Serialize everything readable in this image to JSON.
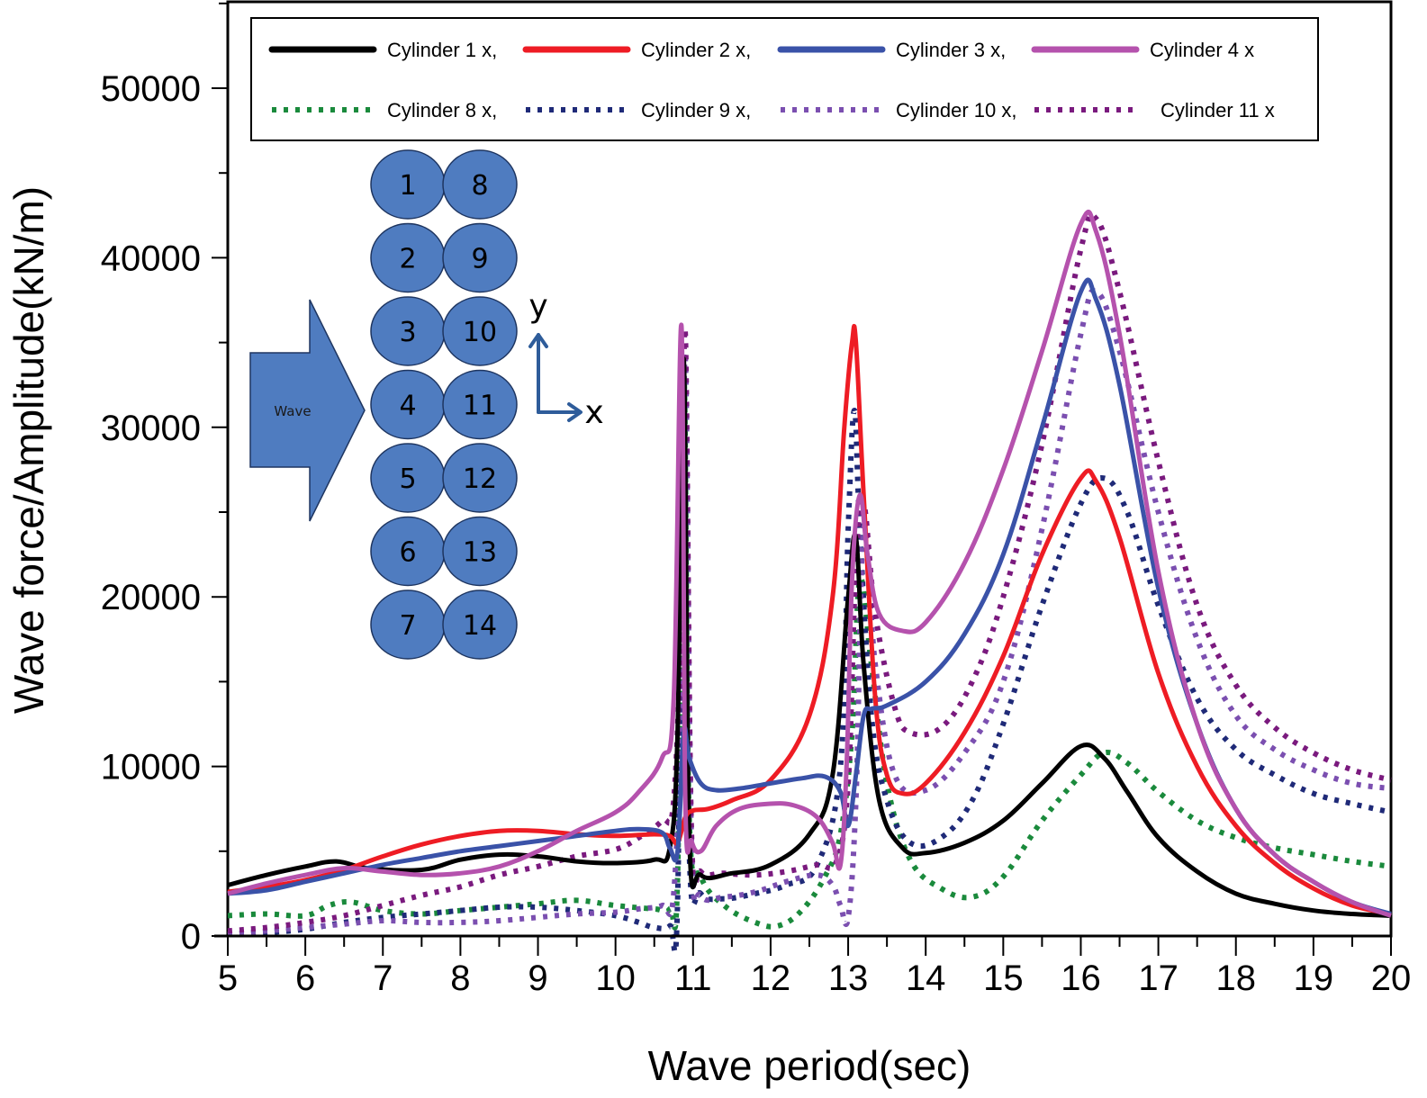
{
  "chart_data": {
    "type": "line",
    "title": "",
    "xlabel": "Wave period(sec)",
    "ylabel": "Wave force/Amplitude(kN/m)",
    "xlim": [
      5,
      20
    ],
    "ylim": [
      0,
      55000
    ],
    "xticks": [
      5,
      6,
      7,
      8,
      9,
      10,
      11,
      12,
      13,
      14,
      15,
      16,
      17,
      18,
      19,
      20
    ],
    "yticks": [
      0,
      10000,
      20000,
      30000,
      40000,
      50000
    ],
    "ytick_labels": [
      "0",
      "10000",
      "20000",
      "30000",
      "40000",
      "50000"
    ],
    "grid": false,
    "legend_position": "top",
    "series": [
      {
        "name": "Cylinder 1 x,",
        "color": "#000000",
        "style": "solid",
        "x": [
          5,
          5.5,
          6,
          6.4,
          6.8,
          7.5,
          8,
          8.5,
          9,
          9.5,
          10,
          10.5,
          10.7,
          10.8,
          10.88,
          10.95,
          11.1,
          11.5,
          12,
          12.5,
          12.8,
          13.0,
          13.1,
          13.2,
          13.4,
          13.7,
          14,
          14.5,
          15,
          15.5,
          16,
          16.3,
          16.6,
          17,
          17.5,
          18,
          18.5,
          19,
          19.5,
          20
        ],
        "y": [
          3000,
          3600,
          4100,
          4400,
          4000,
          3900,
          4500,
          4800,
          4700,
          4400,
          4300,
          4500,
          5200,
          12000,
          34000,
          6000,
          3600,
          3700,
          4200,
          6000,
          9500,
          20000,
          23500,
          16000,
          8000,
          5200,
          4900,
          5500,
          6800,
          9000,
          11200,
          10500,
          8500,
          5800,
          3800,
          2500,
          1900,
          1500,
          1300,
          1200
        ]
      },
      {
        "name": "Cylinder 2 x,",
        "color": "#ee1c24",
        "style": "solid",
        "x": [
          5,
          5.5,
          6,
          6.5,
          7,
          7.5,
          8,
          8.5,
          9,
          9.5,
          10,
          10.5,
          10.7,
          10.8,
          10.9,
          11.0,
          11.2,
          11.5,
          12,
          12.5,
          12.8,
          12.95,
          13.05,
          13.1,
          13.2,
          13.35,
          13.5,
          13.7,
          14,
          14.5,
          15,
          15.5,
          16,
          16.2,
          16.5,
          17,
          17.5,
          18,
          18.5,
          19,
          19.5,
          20
        ],
        "y": [
          2600,
          2900,
          3300,
          3900,
          4700,
          5400,
          5900,
          6200,
          6200,
          6000,
          5900,
          6000,
          5900,
          5500,
          7000,
          7400,
          7500,
          8000,
          9200,
          13000,
          20000,
          30000,
          35000,
          35000,
          26000,
          14000,
          9500,
          8400,
          9000,
          12000,
          16500,
          22500,
          27000,
          26800,
          23500,
          15500,
          10000,
          6500,
          4300,
          2800,
          1800,
          1300
        ]
      },
      {
        "name": "Cylinder 3 x,",
        "color": "#3a52a8",
        "style": "solid",
        "x": [
          5,
          5.5,
          6,
          6.5,
          7,
          7.5,
          8,
          8.5,
          9,
          9.5,
          10,
          10.3,
          10.6,
          10.7,
          10.8,
          10.88,
          10.95,
          11.1,
          11.3,
          11.6,
          12,
          12.4,
          12.7,
          12.9,
          13.0,
          13.1,
          13.2,
          13.3,
          13.5,
          14,
          14.5,
          15,
          15.5,
          16,
          16.2,
          16.5,
          17,
          17.5,
          18,
          18.5,
          19,
          19.5,
          20
        ],
        "y": [
          2500,
          2700,
          3200,
          3700,
          4200,
          4600,
          5000,
          5300,
          5600,
          5900,
          6200,
          6300,
          6100,
          5200,
          5000,
          12000,
          10500,
          9000,
          8600,
          8700,
          9000,
          9300,
          9400,
          8500,
          6500,
          9500,
          13000,
          13400,
          13600,
          15000,
          17800,
          22500,
          30000,
          38000,
          37500,
          32500,
          20500,
          12500,
          7500,
          4800,
          3200,
          2000,
          1300
        ]
      },
      {
        "name": "Cylinder 4 x",
        "color": "#b552ad",
        "style": "solid",
        "x": [
          5,
          5.5,
          6,
          6.5,
          7,
          7.5,
          8,
          8.5,
          9,
          9.5,
          10,
          10.3,
          10.6,
          10.75,
          10.85,
          10.9,
          10.98,
          11.1,
          11.3,
          11.6,
          12,
          12.3,
          12.6,
          12.8,
          12.9,
          12.98,
          13.05,
          13.15,
          13.25,
          13.4,
          13.7,
          14,
          14.5,
          15,
          15.5,
          16,
          16.2,
          16.5,
          17,
          17.5,
          18,
          18.5,
          19,
          19.5,
          20
        ],
        "y": [
          2500,
          3100,
          3600,
          4000,
          3800,
          3600,
          3700,
          4100,
          5000,
          6200,
          7300,
          8500,
          10500,
          14000,
          36000,
          8000,
          5600,
          5000,
          6500,
          7500,
          7800,
          7700,
          7000,
          5500,
          4200,
          10000,
          21000,
          26000,
          22500,
          19000,
          18000,
          18500,
          22000,
          27500,
          34500,
          42000,
          41500,
          35500,
          21500,
          12500,
          7500,
          4800,
          3200,
          2000,
          1200
        ]
      },
      {
        "name": "Cylinder 8 x,",
        "color": "#1a8a3c",
        "style": "dotted",
        "x": [
          5,
          5.5,
          6,
          6.3,
          6.6,
          7,
          7.5,
          8,
          8.5,
          9,
          9.5,
          10,
          10.5,
          10.7,
          10.8,
          10.88,
          10.95,
          11.1,
          11.4,
          11.8,
          12.1,
          12.4,
          12.7,
          12.9,
          13.05,
          13.15,
          13.3,
          13.5,
          13.8,
          14.2,
          14.6,
          15,
          15.5,
          16,
          16.3,
          16.6,
          17,
          17.5,
          18,
          18.5,
          19,
          19.5,
          20
        ],
        "y": [
          1200,
          1300,
          1200,
          1800,
          2000,
          1500,
          1300,
          1500,
          1700,
          1900,
          2100,
          1800,
          1600,
          1600,
          3500,
          33000,
          7000,
          3500,
          1800,
          800,
          600,
          1500,
          3500,
          6000,
          12000,
          21000,
          16000,
          9000,
          4500,
          2800,
          2300,
          3500,
          6800,
          9500,
          10800,
          10200,
          8500,
          6800,
          5800,
          5200,
          4800,
          4400,
          4100
        ]
      },
      {
        "name": "Cylinder 9 x,",
        "color": "#1f2a78",
        "style": "dotted",
        "x": [
          5,
          5.5,
          6,
          6.5,
          7,
          7.5,
          8,
          8.5,
          9,
          9.5,
          10,
          10.3,
          10.5,
          10.7,
          10.8,
          10.88,
          10.95,
          11.1,
          11.4,
          11.8,
          12.2,
          12.6,
          12.9,
          13.0,
          13.08,
          13.15,
          13.3,
          13.5,
          13.8,
          14.2,
          14.6,
          15,
          15.5,
          16,
          16.3,
          16.6,
          17,
          17.5,
          18,
          18.5,
          19,
          19.5,
          20
        ],
        "y": [
          100,
          200,
          400,
          800,
          1100,
          1300,
          1500,
          1700,
          1700,
          1500,
          1200,
          800,
          500,
          600,
          2000,
          33000,
          5000,
          2500,
          2200,
          2500,
          3000,
          4200,
          10000,
          24000,
          31000,
          24000,
          13000,
          8000,
          5500,
          5800,
          8000,
          12500,
          19500,
          25500,
          27000,
          25000,
          19500,
          14000,
          11000,
          9500,
          8400,
          7800,
          7300
        ]
      },
      {
        "name": "Cylinder 10 x,",
        "color": "#7b4fb0",
        "style": "dotted",
        "x": [
          5,
          5.5,
          6,
          6.5,
          7,
          7.5,
          8,
          8.5,
          9,
          9.5,
          10,
          10.3,
          10.6,
          10.75,
          10.85,
          10.9,
          10.98,
          11.1,
          11.4,
          11.8,
          12.2,
          12.6,
          12.8,
          12.9,
          13.0,
          13.1,
          13.2,
          13.35,
          13.6,
          14,
          14.5,
          15,
          15.5,
          16,
          16.2,
          16.5,
          17,
          17.5,
          18,
          18.5,
          19,
          19.5,
          20
        ],
        "y": [
          100,
          300,
          500,
          700,
          900,
          800,
          800,
          900,
          1100,
          1300,
          1400,
          1600,
          1800,
          2500,
          15000,
          34000,
          5500,
          2400,
          2300,
          2600,
          3200,
          3600,
          3000,
          1800,
          1100,
          8000,
          24000,
          16000,
          9500,
          8600,
          10800,
          15000,
          24000,
          35500,
          38000,
          34500,
          25000,
          17500,
          13000,
          11000,
          9800,
          9000,
          8700
        ]
      },
      {
        "name": "Cylinder 11 x",
        "color": "#7a1a7e",
        "style": "dotted",
        "x": [
          5,
          5.5,
          6,
          6.5,
          7,
          7.5,
          8,
          8.5,
          9,
          9.5,
          10,
          10.3,
          10.6,
          10.75,
          10.85,
          10.9,
          10.98,
          11.1,
          11.4,
          11.8,
          12.2,
          12.6,
          12.85,
          13.0,
          13.1,
          13.2,
          13.35,
          13.6,
          13.8,
          14.2,
          14.6,
          15,
          15.5,
          16,
          16.2,
          16.5,
          17,
          17.5,
          18,
          18.5,
          19,
          19.5,
          20
        ],
        "y": [
          300,
          500,
          800,
          1200,
          1800,
          2400,
          2900,
          3600,
          4100,
          4700,
          5100,
          5800,
          6800,
          8000,
          20000,
          35500,
          6000,
          3800,
          3700,
          3600,
          3800,
          4200,
          4400,
          9000,
          22000,
          25500,
          19000,
          13500,
          12000,
          12300,
          15000,
          20000,
          29000,
          40500,
          42300,
          38000,
          28000,
          19500,
          14800,
          12300,
          10800,
          9800,
          9200
        ]
      }
    ]
  },
  "legend": {
    "rows": [
      [
        "Cylinder 1 x,",
        "Cylinder 2 x,",
        "Cylinder 3 x,",
        "Cylinder 4 x"
      ],
      [
        "Cylinder 8 x,",
        "Cylinder 9 x,",
        "Cylinder 10 x,",
        "Cylinder 11 x"
      ]
    ]
  },
  "inset_diagram": {
    "wave_label": "Wave",
    "column_left": [
      "1",
      "2",
      "3",
      "4",
      "5",
      "6",
      "7"
    ],
    "column_right": [
      "8",
      "9",
      "10",
      "11",
      "12",
      "13",
      "14"
    ],
    "axis_x_label": "x",
    "axis_y_label": "y",
    "cylinder_color": "#4f7cc0",
    "arrow_color": "#2e5c9a"
  }
}
